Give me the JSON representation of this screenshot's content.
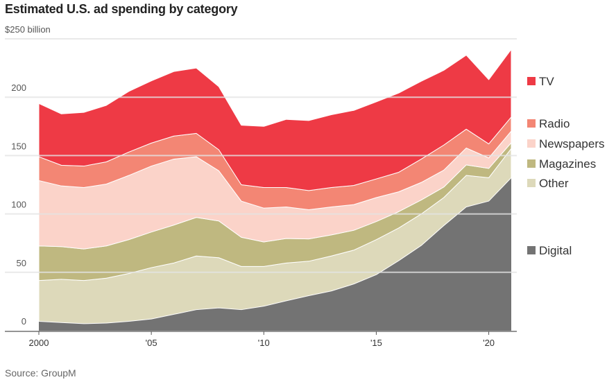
{
  "title": "Estimated U.S. ad spending by category",
  "source": "Source: GroupM",
  "chart_data": {
    "type": "area",
    "stacked": true,
    "title": "Estimated U.S. ad spending by category",
    "ylabel": "$250 billion",
    "ylim": [
      0,
      250
    ],
    "xlim": [
      2000,
      2021
    ],
    "grid": true,
    "legend": "right",
    "x": [
      2000,
      2001,
      2002,
      2003,
      2004,
      2005,
      2006,
      2007,
      2008,
      2009,
      2010,
      2011,
      2012,
      2013,
      2014,
      2015,
      2016,
      2017,
      2018,
      2019,
      2020,
      2021
    ],
    "y_ticks": [
      {
        "value": 0,
        "label": "0"
      },
      {
        "value": 50,
        "label": "50"
      },
      {
        "value": 100,
        "label": "100"
      },
      {
        "value": 150,
        "label": "150"
      },
      {
        "value": 200,
        "label": "200"
      },
      {
        "value": 250,
        "label": "$250 billion"
      }
    ],
    "x_ticks": [
      {
        "value": 2000,
        "label": "2000"
      },
      {
        "value": 2005,
        "label": "'05"
      },
      {
        "value": 2010,
        "label": "'10"
      },
      {
        "value": 2015,
        "label": "'15"
      },
      {
        "value": 2020,
        "label": "'20"
      }
    ],
    "series": [
      {
        "name": "Digital",
        "color": "#737373",
        "values": [
          8,
          7,
          6,
          6.5,
          8,
          10,
          14,
          18,
          19.5,
          18,
          21,
          25.6,
          30,
          34,
          40,
          48,
          60,
          73,
          90,
          106,
          111,
          131
        ]
      },
      {
        "name": "Other",
        "color": "#ddd9ba",
        "values": [
          35,
          37,
          37,
          38.5,
          41,
          44,
          44,
          46,
          43,
          37,
          34,
          32.4,
          29.5,
          30,
          29,
          30,
          28,
          27,
          24,
          27,
          20,
          25
        ]
      },
      {
        "name": "Magazines",
        "color": "#bfb880",
        "values": [
          29.6,
          28,
          27,
          27.6,
          29,
          30.5,
          32.5,
          33,
          31.5,
          25,
          21,
          21,
          19.1,
          18,
          17,
          15.5,
          14,
          12,
          9,
          9,
          8,
          5
        ]
      },
      {
        "name": "Newspapers",
        "color": "#fbd3c9",
        "values": [
          56,
          52,
          52.6,
          53,
          55,
          56.5,
          56.5,
          52,
          43,
          31,
          29,
          27,
          25,
          24,
          22,
          20.5,
          17,
          15,
          14.5,
          14.5,
          9,
          10
        ]
      },
      {
        "name": "Radio",
        "color": "#f38674",
        "values": [
          20.4,
          17.7,
          18.4,
          19,
          20,
          19.7,
          19.7,
          20,
          18,
          14,
          17.6,
          16.6,
          16.4,
          16.6,
          16.4,
          16,
          16.7,
          20,
          21.5,
          16.1,
          12,
          12
        ]
      },
      {
        "name": "TV",
        "color": "#ee3a45",
        "values": [
          45.6,
          44,
          46,
          48.4,
          52,
          53.3,
          55.3,
          56,
          54,
          51,
          52.4,
          58.4,
          60,
          62.4,
          64.3,
          66,
          67.9,
          66.7,
          64,
          63.4,
          55,
          58
        ]
      }
    ]
  }
}
